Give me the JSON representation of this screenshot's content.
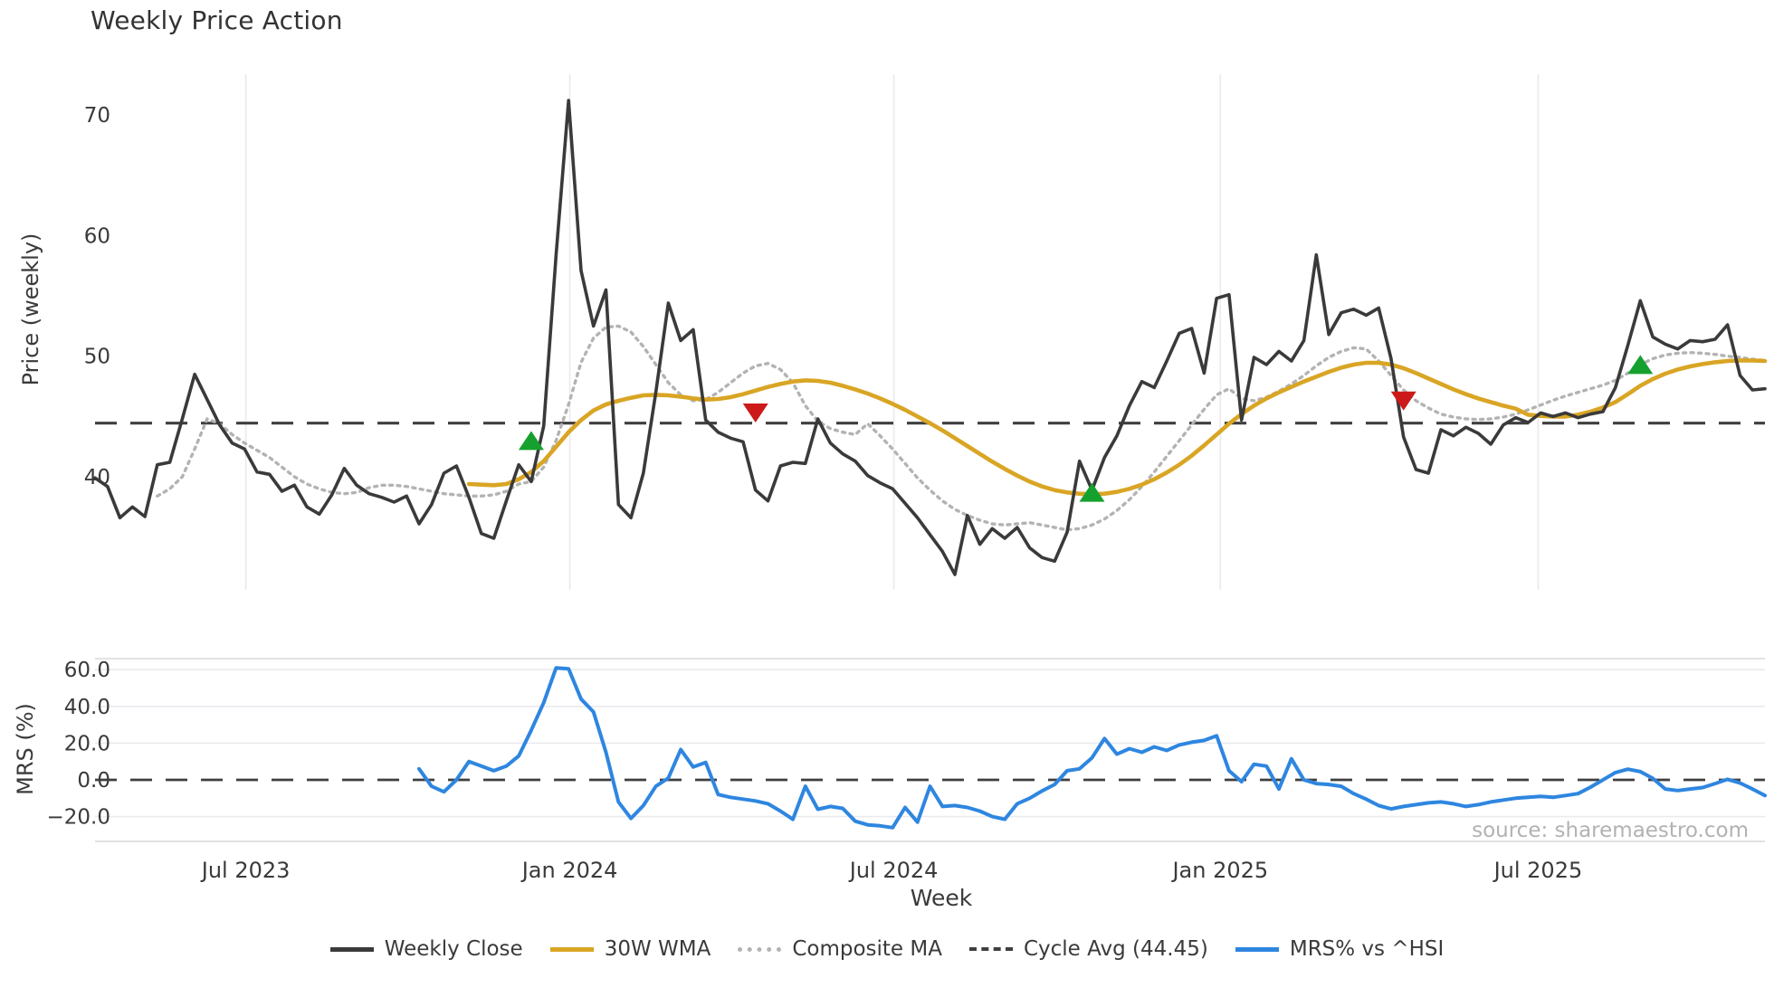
{
  "chart_data": {
    "type": "line",
    "title": "Weekly Price Action",
    "watermark": "source: sharemaestro.com",
    "grid": "on",
    "legend_position": "bottom-center",
    "colors": {
      "weekly_close": "#3a3a3a",
      "wma30": "#d9a524",
      "composite": "#b3b3b3",
      "cycle_avg": "#3f3f3f",
      "mrs": "#2e86e0",
      "buy_marker": "#16a02e",
      "sell_marker": "#cc1a1a",
      "gridline": "#eaeaef",
      "spine": "#d8d8d8",
      "text": "#3a3a3a",
      "watermark": "#a5a5a5"
    },
    "legend": {
      "items": [
        {
          "label": "Weekly Close",
          "style": "solid",
          "color": "#3a3a3a"
        },
        {
          "label": "30W WMA",
          "style": "solid",
          "color": "#d9a524"
        },
        {
          "label": "Composite MA",
          "style": "dotted",
          "color": "#b3b3b3"
        },
        {
          "label": "Cycle Avg (44.45)",
          "style": "dashed",
          "color": "#3f3f3f"
        },
        {
          "label": "MRS% vs ^HSI",
          "style": "solid",
          "color": "#2e86e0"
        }
      ]
    },
    "x_axis": {
      "label": "Week",
      "n_weeks": 135,
      "ticks": [
        {
          "label": "Jul 2023",
          "week": 12.1
        },
        {
          "label": "Jan 2024",
          "week": 38.1
        },
        {
          "label": "Jul 2024",
          "week": 64.1
        },
        {
          "label": "Jan 2025",
          "week": 90.3
        },
        {
          "label": "Jul 2025",
          "week": 115.8
        }
      ]
    },
    "panels": [
      {
        "id": "price",
        "ylabel": "Price (weekly)",
        "ylim": [
          30.6,
          73.4
        ],
        "ytick_values": [
          40,
          50,
          60,
          70
        ],
        "ytick_labels": [
          "40",
          "50",
          "60",
          "70"
        ],
        "cycle_avg": 44.45,
        "series": [
          {
            "name": "Weekly Close",
            "style": "solid",
            "color": "#3a3a3a",
            "width": 3.6,
            "start_week": 0,
            "values": [
              39.9,
              39.2,
              36.6,
              37.5,
              36.7,
              41.0,
              41.2,
              44.8,
              48.5,
              46.4,
              44.3,
              42.8,
              42.3,
              40.4,
              40.2,
              38.8,
              39.3,
              37.5,
              36.9,
              38.5,
              40.7,
              39.3,
              38.6,
              38.3,
              37.9,
              38.4,
              36.1,
              37.7,
              40.3,
              40.9,
              38.3,
              35.3,
              34.9,
              38.0,
              41.0,
              39.6,
              44.2,
              58.4,
              71.2,
              57.1,
              52.5,
              55.5,
              37.7,
              36.6,
              40.3,
              47.0,
              54.4,
              51.3,
              52.2,
              44.7,
              43.7,
              43.2,
              42.9,
              38.9,
              38.0,
              40.9,
              41.2,
              41.1,
              44.8,
              42.8,
              41.9,
              41.3,
              40.1,
              39.5,
              39.0,
              37.8,
              36.6,
              35.2,
              33.8,
              31.9,
              36.8,
              34.4,
              35.7,
              34.9,
              35.8,
              34.1,
              33.3,
              33.0,
              35.4,
              41.3,
              38.9,
              41.6,
              43.4,
              45.9,
              47.9,
              47.4,
              49.6,
              51.9,
              52.3,
              48.6,
              54.8,
              55.1,
              44.7,
              49.9,
              49.3,
              50.4,
              49.6,
              51.3,
              58.4,
              51.8,
              53.6,
              53.9,
              53.4,
              54.0,
              49.8,
              43.3,
              40.6,
              40.3,
              43.9,
              43.4,
              44.1,
              43.6,
              42.7,
              44.3,
              44.9,
              44.5,
              45.3,
              45.0,
              45.3,
              44.9,
              45.2,
              45.4,
              47.4,
              50.9,
              54.6,
              51.6,
              51.0,
              50.6,
              51.3,
              51.2,
              51.4,
              52.6,
              48.4,
              47.2,
              47.3
            ]
          },
          {
            "name": "30W WMA",
            "style": "solid",
            "color": "#d9a524",
            "width": 4.6,
            "start_week": 30,
            "values": [
              39.4,
              39.35,
              39.3,
              39.4,
              39.8,
              40.4,
              41.3,
              42.5,
              43.7,
              44.7,
              45.5,
              46.0,
              46.3,
              46.55,
              46.75,
              46.8,
              46.75,
              46.65,
              46.5,
              46.4,
              46.45,
              46.6,
              46.85,
              47.15,
              47.45,
              47.7,
              47.9,
              48.0,
              47.95,
              47.8,
              47.55,
              47.25,
              46.9,
              46.5,
              46.05,
              45.55,
              45.0,
              44.45,
              43.85,
              43.2,
              42.55,
              41.9,
              41.25,
              40.65,
              40.1,
              39.6,
              39.2,
              38.9,
              38.7,
              38.6,
              38.55,
              38.6,
              38.75,
              39.0,
              39.35,
              39.8,
              40.35,
              41.0,
              41.75,
              42.6,
              43.5,
              44.4,
              45.2,
              45.9,
              46.5,
              47.0,
              47.45,
              47.9,
              48.3,
              48.7,
              49.05,
              49.3,
              49.45,
              49.45,
              49.3,
              49.0,
              48.6,
              48.15,
              47.7,
              47.25,
              46.85,
              46.5,
              46.2,
              45.9,
              45.65,
              45.15,
              45.05,
              45.0,
              45.0,
              45.15,
              45.4,
              45.75,
              46.2,
              46.85,
              47.55,
              48.1,
              48.55,
              48.9,
              49.15,
              49.35,
              49.5,
              49.6,
              49.65,
              49.65,
              49.6
            ]
          },
          {
            "name": "Composite MA",
            "style": "dotted",
            "color": "#b3b3b3",
            "width": 3.4,
            "start_week": 5,
            "values": [
              38.4,
              39.0,
              40.0,
              42.3,
              44.8,
              44.4,
              43.5,
              42.8,
              42.2,
              41.6,
              40.8,
              40.0,
              39.4,
              39.0,
              38.7,
              38.6,
              38.7,
              39.1,
              39.3,
              39.3,
              39.2,
              39.0,
              38.8,
              38.6,
              38.5,
              38.4,
              38.4,
              38.5,
              38.8,
              39.4,
              39.6,
              40.8,
              43.0,
              46.0,
              49.5,
              51.5,
              52.4,
              52.5,
              52.0,
              50.8,
              49.3,
              47.8,
              46.8,
              46.3,
              46.4,
              47.0,
              47.8,
              48.6,
              49.2,
              49.4,
              48.9,
              47.8,
              45.9,
              44.6,
              44.0,
              43.7,
              43.5,
              44.4,
              43.4,
              42.3,
              41.1,
              39.9,
              38.9,
              38.0,
              37.3,
              36.8,
              36.4,
              36.1,
              36.0,
              36.1,
              36.2,
              36.0,
              35.8,
              35.6,
              35.7,
              36.0,
              36.5,
              37.2,
              38.1,
              39.2,
              40.4,
              41.7,
              43.0,
              44.3,
              45.6,
              46.8,
              47.3,
              46.5,
              46.3,
              46.6,
              47.1,
              47.7,
              48.4,
              49.2,
              49.9,
              50.4,
              50.7,
              50.6,
              49.6,
              48.4,
              47.2,
              46.3,
              45.7,
              45.2,
              44.95,
              44.8,
              44.75,
              44.8,
              44.95,
              45.2,
              45.55,
              45.95,
              46.35,
              46.7,
              47.0,
              47.3,
              47.6,
              48.0,
              48.6,
              49.3,
              49.8,
              50.1,
              50.25,
              50.3,
              50.25,
              50.15,
              50.0,
              49.9,
              49.75,
              49.65
            ]
          }
        ],
        "markers": [
          {
            "signal": "buy",
            "shape": "triangle-up",
            "color": "#16a02e",
            "week": 35,
            "value": 42.9
          },
          {
            "signal": "sell",
            "shape": "triangle-down",
            "color": "#cc1a1a",
            "week": 53,
            "value": 45.4
          },
          {
            "signal": "buy",
            "shape": "triangle-up",
            "color": "#16a02e",
            "week": 80,
            "value": 38.6
          },
          {
            "signal": "sell",
            "shape": "triangle-down",
            "color": "#cc1a1a",
            "week": 105,
            "value": 46.4
          },
          {
            "signal": "buy",
            "shape": "triangle-up",
            "color": "#16a02e",
            "week": 124,
            "value": 49.2
          }
        ]
      },
      {
        "id": "mrs",
        "ylabel": "MRS (%)",
        "ylim": [
          -33,
          66
        ],
        "ytick_values": [
          60,
          40,
          20,
          0,
          -20
        ],
        "ytick_labels": [
          "60.0",
          "40.0",
          "20.0",
          "0.0",
          "−20.0"
        ],
        "zero_line_dashed": true,
        "series": [
          {
            "name": "MRS% vs ^HSI",
            "style": "solid",
            "color": "#2e86e0",
            "width": 4.0,
            "start_week": 26,
            "values": [
              6.0,
              -3.5,
              -6.5,
              0.0,
              10.0,
              7.5,
              5.0,
              7.5,
              13.0,
              27.0,
              42.0,
              61.0,
              60.5,
              44.0,
              37.0,
              15.0,
              -12.0,
              -21.0,
              -14.0,
              -3.5,
              1.0,
              16.5,
              7.0,
              9.5,
              -8.0,
              -9.5,
              -10.5,
              -11.5,
              -13.0,
              -17.0,
              -21.5,
              -3.5,
              -16.0,
              -14.5,
              -15.5,
              -22.5,
              -24.5,
              -25.0,
              -26.0,
              -15.0,
              -23.0,
              -3.5,
              -14.5,
              -14.0,
              -15.0,
              -17.0,
              -20.0,
              -21.5,
              -13.0,
              -10.0,
              -6.0,
              -2.5,
              5.0,
              6.0,
              12.0,
              22.5,
              14.0,
              17.0,
              15.0,
              18.0,
              16.0,
              19.0,
              20.5,
              21.5,
              24.0,
              5.0,
              -1.0,
              8.5,
              7.5,
              -5.0,
              11.5,
              0.0,
              -2.0,
              -2.5,
              -3.5,
              -7.5,
              -10.5,
              -14.0,
              -15.8,
              -14.5,
              -13.5,
              -12.5,
              -12.0,
              -13.0,
              -14.5,
              -13.5,
              -12.0,
              -11.0,
              -10.0,
              -9.5,
              -9.0,
              -9.5,
              -8.5,
              -7.5,
              -4.0,
              0.0,
              4.0,
              5.8,
              4.5,
              0.8,
              -5.0,
              -5.8,
              -5.0,
              -4.2,
              -2.0,
              0.3,
              -1.7,
              -5.0,
              -8.5
            ]
          }
        ]
      }
    ]
  }
}
